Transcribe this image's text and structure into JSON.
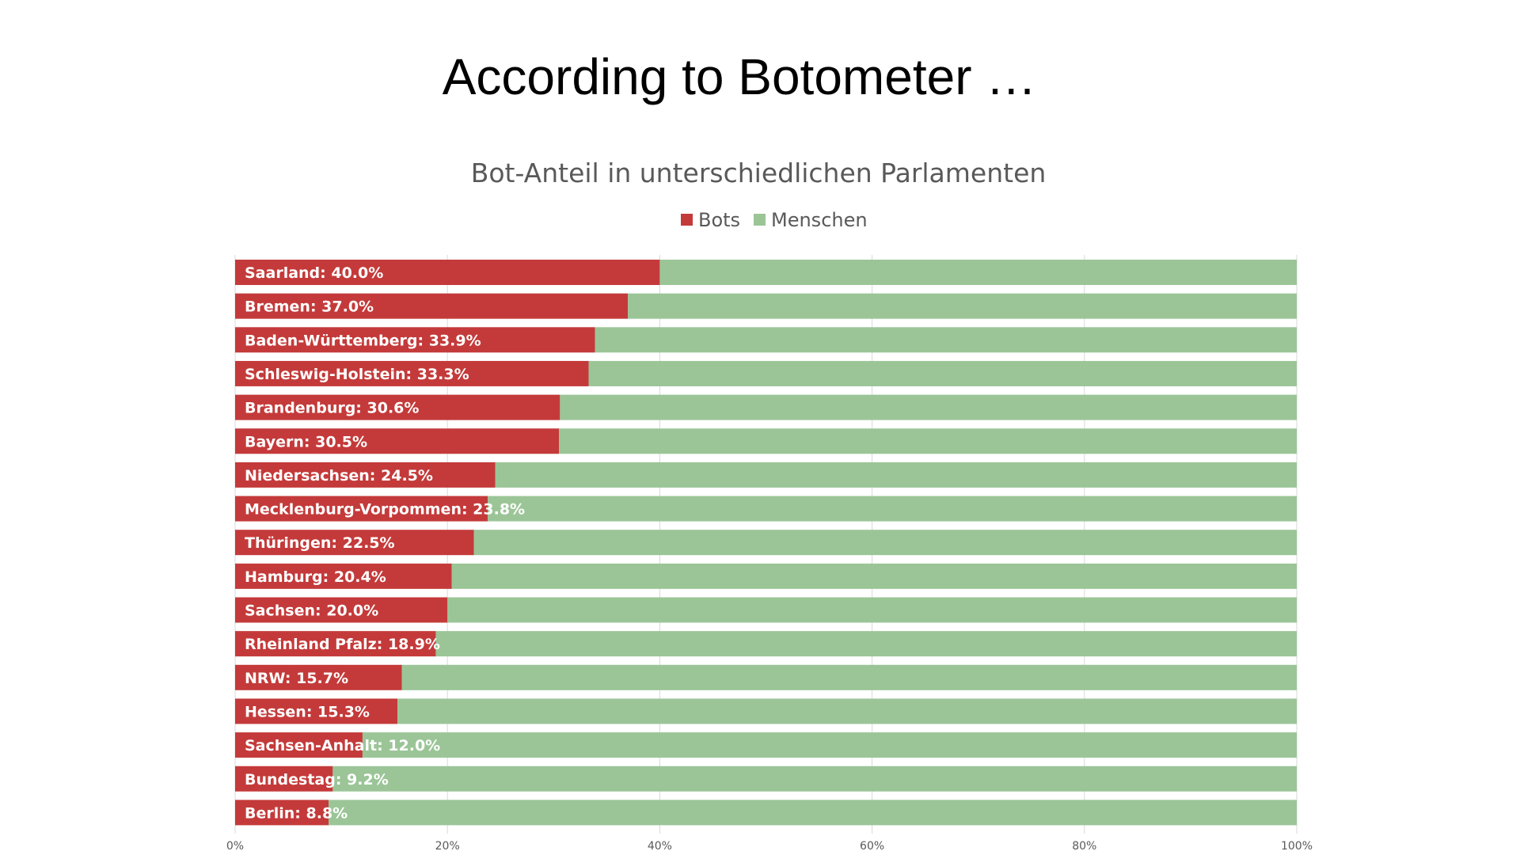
{
  "slide": {
    "title": "According to Botometer …"
  },
  "chart_data": {
    "type": "bar",
    "orientation": "horizontal",
    "stacked": "100%",
    "title": "Bot-Anteil in unterschiedlichen Parlamenten",
    "xlim": [
      0,
      100
    ],
    "x_ticks": [
      "0%",
      "20%",
      "40%",
      "60%",
      "80%",
      "100%"
    ],
    "grid": true,
    "legend": "top",
    "categories": [
      "Saarland",
      "Bremen",
      "Baden-Württemberg",
      "Schleswig-Holstein",
      "Brandenburg",
      "Bayern",
      "Niedersachsen",
      "Mecklenburg-Vorpommen",
      "Thüringen",
      "Hamburg",
      "Sachsen",
      "Rheinland Pfalz",
      "NRW",
      "Hessen",
      "Sachsen-Anhalt",
      "Bundestag",
      "Berlin"
    ],
    "data_labels": [
      "Saarland: 40.0%",
      "Bremen: 37.0%",
      "Baden-Württemberg: 33.9%",
      "Schleswig-Holstein: 33.3%",
      "Brandenburg: 30.6%",
      "Bayern: 30.5%",
      "Niedersachsen: 24.5%",
      "Mecklenburg-Vorpommen: 23.8%",
      "Thüringen: 22.5%",
      "Hamburg: 20.4%",
      "Sachsen: 20.0%",
      "Rheinland Pfalz: 18.9%",
      "NRW: 15.7%",
      "Hessen: 15.3%",
      "Sachsen-Anhalt: 12.0%",
      "Bundestag: 9.2%",
      "Berlin: 8.8%"
    ],
    "series": [
      {
        "name": "Bots",
        "color": "#c43a3a",
        "values": [
          40.0,
          37.0,
          33.9,
          33.3,
          30.6,
          30.5,
          24.5,
          23.8,
          22.5,
          20.4,
          20.0,
          18.9,
          15.7,
          15.3,
          12.0,
          9.2,
          8.8
        ]
      },
      {
        "name": "Menschen",
        "color": "#9bc597",
        "values": [
          60.0,
          63.0,
          66.1,
          66.7,
          69.4,
          69.5,
          75.5,
          76.2,
          77.5,
          79.6,
          80.0,
          81.1,
          84.3,
          84.7,
          88.0,
          90.8,
          91.2
        ]
      }
    ],
    "colors": {
      "gridline": "#d9d9d9",
      "text": "#595959"
    }
  }
}
